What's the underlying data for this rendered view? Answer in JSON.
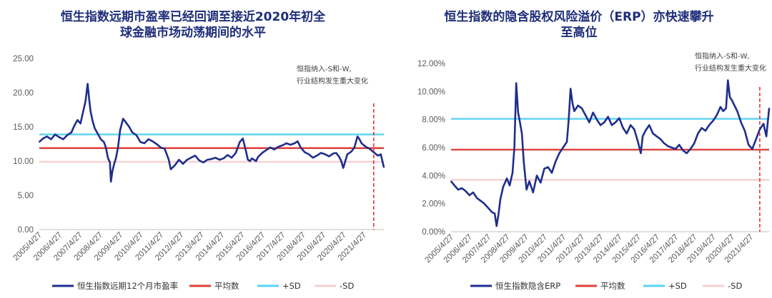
{
  "chart_data": [
    {
      "type": "line",
      "title": "恒生指数远期市盈率已经回调至接近2020年初全球金融市场动荡期间的水平",
      "title_lines": [
        "恒生指数远期市盈率已经回调至接近2020年初全",
        "球金融市场动荡期间的水平"
      ],
      "ylim": [
        0,
        25
      ],
      "y_ticks": [
        "0.00",
        "5.00",
        "10.00",
        "15.00",
        "20.00",
        "25.00"
      ],
      "y_tick_values": [
        0,
        5,
        10,
        15,
        20,
        25
      ],
      "x_range": [
        2005.32,
        2022.3
      ],
      "x_ticks": [
        "2005/4/27",
        "2006/4/27",
        "2007/4/27",
        "2008/4/27",
        "2009/4/27",
        "2010/4/27",
        "2011/4/27",
        "2012/4/27",
        "2013/4/27",
        "2014/4/27",
        "2015/4/27",
        "2016/4/27",
        "2017/4/27",
        "2018/4/27",
        "2019/4/27",
        "2020/4/27",
        "2021/4/27"
      ],
      "annotation": [
        "恒指纳入-S和-W,",
        "行业结构发生重大变化"
      ],
      "vline_x": 2021.8,
      "hlines": {
        "mean": 11.9,
        "plus_sd": 13.9,
        "minus_sd": 9.9
      },
      "colors": {
        "series": "#1f2e8c",
        "mean": "#e0403a",
        "plus_sd": "#5bd3f2",
        "minus_sd": "#f8cfcf",
        "vline": "#e8262a"
      },
      "series": [
        {
          "name": "恒生指数远期12个月市盈率",
          "x": [
            2005.32,
            2005.5,
            2005.7,
            2005.9,
            2006.1,
            2006.3,
            2006.5,
            2006.7,
            2006.9,
            2007.05,
            2007.2,
            2007.35,
            2007.5,
            2007.6,
            2007.7,
            2007.78,
            2007.85,
            2007.95,
            2008.05,
            2008.2,
            2008.35,
            2008.5,
            2008.6,
            2008.7,
            2008.8,
            2008.85,
            2008.92,
            2009.0,
            2009.1,
            2009.2,
            2009.3,
            2009.45,
            2009.6,
            2009.75,
            2009.9,
            2010.1,
            2010.3,
            2010.5,
            2010.7,
            2010.9,
            2011.1,
            2011.3,
            2011.5,
            2011.6,
            2011.7,
            2011.8,
            2012.0,
            2012.2,
            2012.4,
            2012.6,
            2012.8,
            2013.0,
            2013.2,
            2013.4,
            2013.6,
            2013.8,
            2014.0,
            2014.2,
            2014.4,
            2014.6,
            2014.8,
            2015.0,
            2015.2,
            2015.35,
            2015.5,
            2015.6,
            2015.7,
            2015.8,
            2016.0,
            2016.1,
            2016.3,
            2016.5,
            2016.7,
            2016.9,
            2017.1,
            2017.3,
            2017.5,
            2017.7,
            2017.9,
            2018.05,
            2018.2,
            2018.4,
            2018.6,
            2018.8,
            2019.0,
            2019.2,
            2019.4,
            2019.6,
            2019.8,
            2019.95,
            2020.1,
            2020.2,
            2020.3,
            2020.5,
            2020.7,
            2020.85,
            2021.0,
            2021.1,
            2021.2,
            2021.4,
            2021.6,
            2021.8,
            2022.0,
            2022.15,
            2022.3
          ],
          "values": [
            12.8,
            13.3,
            13.6,
            13.2,
            13.9,
            13.5,
            13.2,
            13.8,
            14.2,
            15.2,
            16.0,
            15.5,
            17.5,
            18.8,
            21.3,
            19.0,
            17.2,
            15.8,
            14.8,
            14.0,
            13.2,
            12.8,
            12.0,
            10.5,
            9.8,
            7.0,
            8.5,
            9.5,
            10.5,
            12.0,
            14.5,
            16.2,
            15.6,
            15.0,
            14.2,
            13.8,
            12.8,
            12.6,
            13.2,
            12.9,
            12.5,
            12.0,
            11.8,
            11.0,
            10.2,
            8.8,
            9.4,
            10.2,
            9.6,
            10.2,
            10.5,
            10.8,
            10.1,
            9.8,
            10.2,
            10.3,
            10.5,
            10.2,
            10.4,
            10.9,
            10.5,
            11.2,
            12.8,
            13.3,
            11.5,
            10.2,
            10.0,
            10.4,
            10.0,
            10.6,
            11.2,
            11.6,
            12.0,
            11.7,
            12.1,
            12.3,
            12.6,
            12.4,
            12.6,
            12.9,
            12.0,
            11.3,
            11.0,
            10.5,
            10.8,
            11.2,
            11.0,
            10.7,
            11.1,
            11.2,
            10.6,
            10.0,
            9.0,
            11.0,
            11.4,
            12.0,
            13.6,
            13.2,
            12.6,
            12.1,
            11.8,
            11.3,
            10.8,
            11.0,
            9.1
          ]
        }
      ],
      "legend": [
        "恒生指数远期12个月市盈率",
        "平均数",
        "+SD",
        "-SD"
      ]
    },
    {
      "type": "line",
      "title": "恒生指数的隐含股权风险溢价（ERP）亦快速攀升至高位",
      "title_lines": [
        "恒生指数的隐含股权风险溢价（ERP）亦快速攀升",
        "至高位"
      ],
      "ylim": [
        0,
        12
      ],
      "y_ticks": [
        "0.00%",
        "2.00%",
        "4.00%",
        "6.00%",
        "8.00%",
        "10.00%",
        "12.00%"
      ],
      "y_tick_values": [
        0,
        2,
        4,
        6,
        8,
        10,
        12
      ],
      "x_range": [
        2005.32,
        2022.3
      ],
      "x_ticks": [
        "2005/4/27",
        "2006/4/27",
        "2007/4/27",
        "2008/4/27",
        "2009/4/27",
        "2010/4/27",
        "2011/4/27",
        "2012/4/27",
        "2013/4/27",
        "2014/4/27",
        "2015/4/27",
        "2016/4/27",
        "2017/4/27",
        "2018/4/27",
        "2019/4/27",
        "2020/4/27",
        "2021/4/27"
      ],
      "annotation": [
        "恒指纳入-S和-W,",
        "行业结构发生重大变化"
      ],
      "vline_x": 2021.8,
      "hlines": {
        "mean": 5.85,
        "plus_sd": 8.05,
        "minus_sd": 3.7
      },
      "colors": {
        "series": "#1f2e8c",
        "mean": "#e0403a",
        "plus_sd": "#5bd3f2",
        "minus_sd": "#f8cfcf",
        "vline": "#e8262a"
      },
      "series": [
        {
          "name": "恒生指数隐含ERP",
          "x": [
            2005.32,
            2005.5,
            2005.7,
            2005.9,
            2006.1,
            2006.3,
            2006.5,
            2006.7,
            2006.9,
            2007.1,
            2007.3,
            2007.5,
            2007.65,
            2007.75,
            2007.85,
            2007.95,
            2008.1,
            2008.3,
            2008.45,
            2008.6,
            2008.7,
            2008.8,
            2008.9,
            2009.0,
            2009.1,
            2009.2,
            2009.35,
            2009.5,
            2009.7,
            2009.9,
            2010.1,
            2010.3,
            2010.5,
            2010.7,
            2010.9,
            2011.1,
            2011.3,
            2011.5,
            2011.6,
            2011.7,
            2011.8,
            2011.9,
            2012.1,
            2012.3,
            2012.5,
            2012.7,
            2012.9,
            2013.1,
            2013.3,
            2013.5,
            2013.7,
            2013.9,
            2014.1,
            2014.3,
            2014.5,
            2014.7,
            2014.9,
            2015.1,
            2015.3,
            2015.45,
            2015.55,
            2015.7,
            2015.9,
            2016.1,
            2016.3,
            2016.5,
            2016.7,
            2016.9,
            2017.1,
            2017.3,
            2017.5,
            2017.7,
            2017.9,
            2018.1,
            2018.3,
            2018.5,
            2018.7,
            2018.9,
            2019.1,
            2019.3,
            2019.5,
            2019.7,
            2019.85,
            2020.0,
            2020.1,
            2020.2,
            2020.3,
            2020.45,
            2020.6,
            2020.8,
            2021.0,
            2021.2,
            2021.4,
            2021.6,
            2021.8,
            2022.0,
            2022.15,
            2022.3
          ],
          "values": [
            3.6,
            3.3,
            3.0,
            3.1,
            2.9,
            2.6,
            2.8,
            2.4,
            2.2,
            2.0,
            1.7,
            1.4,
            1.3,
            0.4,
            1.2,
            2.3,
            3.2,
            3.8,
            3.3,
            4.2,
            6.0,
            10.6,
            8.5,
            7.8,
            7.0,
            5.0,
            3.0,
            3.6,
            2.8,
            4.0,
            3.5,
            4.5,
            4.6,
            4.2,
            5.0,
            5.6,
            6.0,
            6.4,
            8.0,
            10.2,
            9.2,
            8.6,
            9.0,
            8.8,
            8.3,
            7.8,
            8.5,
            8.0,
            7.6,
            7.8,
            8.2,
            7.6,
            7.8,
            8.1,
            7.4,
            7.0,
            7.6,
            7.3,
            6.4,
            5.6,
            6.8,
            7.2,
            7.6,
            7.0,
            6.8,
            6.6,
            6.3,
            6.1,
            6.0,
            5.9,
            6.2,
            5.8,
            5.6,
            5.9,
            6.3,
            7.0,
            7.4,
            7.2,
            7.6,
            7.9,
            8.3,
            8.9,
            8.6,
            8.8,
            10.8,
            9.6,
            9.4,
            9.0,
            8.6,
            7.8,
            7.2,
            6.2,
            5.9,
            6.6,
            7.3,
            7.7,
            6.8,
            8.8
          ]
        }
      ],
      "legend": [
        "恒生指数隐含ERP",
        "平均数",
        "+SD",
        "-SD"
      ]
    }
  ]
}
